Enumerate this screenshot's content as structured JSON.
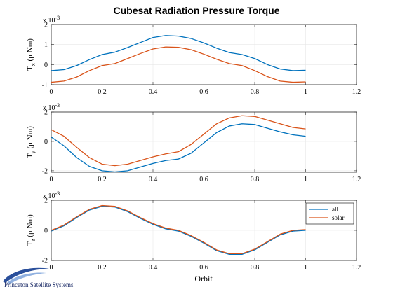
{
  "title": "Cubesat Radiation Pressure Torque",
  "colors": {
    "all": "#0072BD",
    "solar": "#D95319",
    "grid": "#e6e6e6",
    "axis": "#262626"
  },
  "logo": {
    "text": "Princeton Satellite Systems",
    "icon": "orbit-swoosh-icon"
  },
  "xlabel": "Orbit",
  "legend": {
    "location": "northeast",
    "entries": [
      "all",
      "solar"
    ]
  },
  "chart_data": [
    {
      "type": "line",
      "ylabel_main": "T",
      "ylabel_sub": "x",
      "ylabel_rest": "(μ Nm)",
      "exponent": "x 10",
      "exponent_power": "-3",
      "xlim": [
        0,
        1.2
      ],
      "ylim": [
        -1,
        2
      ],
      "xticks": [
        0,
        0.2,
        0.4,
        0.6,
        0.8,
        1,
        1.2
      ],
      "xtick_labels": [
        "0",
        "0.2",
        "0.4",
        "0.6",
        "0.8",
        "1",
        "1.2"
      ],
      "yticks": [
        -1,
        0,
        1,
        2
      ],
      "ytick_labels": [
        "-1",
        "0",
        "1",
        "2"
      ],
      "x": [
        0,
        0.05,
        0.1,
        0.15,
        0.2,
        0.25,
        0.3,
        0.35,
        0.4,
        0.45,
        0.5,
        0.55,
        0.6,
        0.65,
        0.7,
        0.75,
        0.8,
        0.85,
        0.9,
        0.95,
        1.0
      ],
      "series": [
        {
          "name": "all",
          "values": [
            -0.3,
            -0.25,
            -0.05,
            0.25,
            0.5,
            0.62,
            0.85,
            1.1,
            1.35,
            1.45,
            1.42,
            1.3,
            1.08,
            0.82,
            0.6,
            0.5,
            0.3,
            0.0,
            -0.22,
            -0.3,
            -0.28
          ]
        },
        {
          "name": "solar",
          "values": [
            -0.88,
            -0.82,
            -0.62,
            -0.3,
            -0.05,
            0.05,
            0.3,
            0.55,
            0.78,
            0.88,
            0.86,
            0.74,
            0.52,
            0.27,
            0.05,
            -0.05,
            -0.3,
            -0.6,
            -0.82,
            -0.88,
            -0.86
          ]
        }
      ]
    },
    {
      "type": "line",
      "ylabel_main": "T",
      "ylabel_sub": "y",
      "ylabel_rest": "(μ Nm)",
      "exponent": "x 10",
      "exponent_power": "-3",
      "xlim": [
        0,
        1.2
      ],
      "ylim": [
        -2.1,
        2
      ],
      "xticks": [
        0,
        0.2,
        0.4,
        0.6,
        0.8,
        1,
        1.2
      ],
      "xtick_labels": [
        "0",
        "0.2",
        "0.4",
        "0.6",
        "0.8",
        "1",
        "1.2"
      ],
      "yticks": [
        -2,
        0,
        2
      ],
      "ytick_labels": [
        "-2",
        "0",
        "2"
      ],
      "x": [
        0,
        0.05,
        0.1,
        0.15,
        0.2,
        0.25,
        0.3,
        0.35,
        0.4,
        0.45,
        0.5,
        0.55,
        0.6,
        0.65,
        0.7,
        0.75,
        0.8,
        0.85,
        0.9,
        0.95,
        1.0
      ],
      "series": [
        {
          "name": "all",
          "values": [
            0.3,
            -0.3,
            -1.1,
            -1.7,
            -2.0,
            -2.08,
            -2.0,
            -1.75,
            -1.5,
            -1.3,
            -1.2,
            -0.8,
            -0.1,
            0.6,
            1.05,
            1.2,
            1.15,
            0.9,
            0.65,
            0.45,
            0.35
          ]
        },
        {
          "name": "solar",
          "values": [
            0.8,
            0.35,
            -0.4,
            -1.1,
            -1.55,
            -1.65,
            -1.55,
            -1.3,
            -1.05,
            -0.85,
            -0.7,
            -0.2,
            0.5,
            1.2,
            1.6,
            1.75,
            1.7,
            1.45,
            1.2,
            0.95,
            0.85
          ]
        }
      ]
    },
    {
      "type": "line",
      "ylabel_main": "T",
      "ylabel_sub": "z",
      "ylabel_rest": "(μ Nm)",
      "exponent": "x 10",
      "exponent_power": "-3",
      "xlim": [
        0,
        1.2
      ],
      "ylim": [
        -2,
        2
      ],
      "xticks": [
        0,
        0.2,
        0.4,
        0.6,
        0.8,
        1,
        1.2
      ],
      "xtick_labels": [
        "0",
        "0.2",
        "0.4",
        "0.6",
        "0.8",
        "1",
        "1.2"
      ],
      "yticks": [
        -2,
        0,
        2
      ],
      "ytick_labels": [
        "-2",
        "0",
        "2"
      ],
      "legend": true,
      "x": [
        0,
        0.05,
        0.1,
        0.15,
        0.2,
        0.25,
        0.3,
        0.35,
        0.4,
        0.45,
        0.5,
        0.55,
        0.6,
        0.65,
        0.7,
        0.75,
        0.8,
        0.85,
        0.9,
        0.95,
        1.0
      ],
      "series": [
        {
          "name": "all",
          "values": [
            -0.05,
            0.3,
            0.85,
            1.35,
            1.6,
            1.55,
            1.25,
            0.8,
            0.4,
            0.1,
            -0.05,
            -0.4,
            -0.85,
            -1.35,
            -1.6,
            -1.6,
            -1.3,
            -0.8,
            -0.3,
            -0.05,
            0.0
          ]
        },
        {
          "name": "solar",
          "values": [
            0.0,
            0.35,
            0.9,
            1.4,
            1.65,
            1.6,
            1.3,
            0.85,
            0.45,
            0.15,
            0.0,
            -0.35,
            -0.8,
            -1.3,
            -1.55,
            -1.55,
            -1.25,
            -0.75,
            -0.25,
            0.0,
            0.05
          ]
        }
      ]
    }
  ]
}
